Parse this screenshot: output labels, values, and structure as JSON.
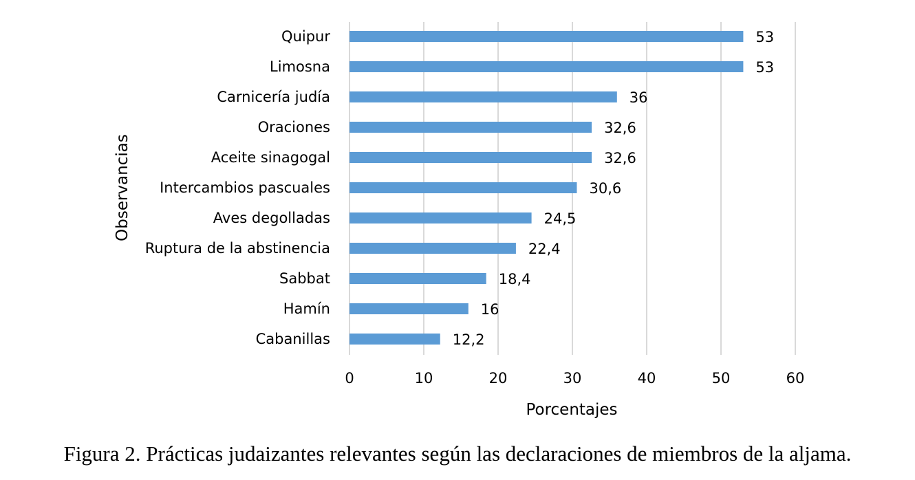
{
  "chart_data": {
    "type": "bar",
    "orientation": "horizontal",
    "categories": [
      "Quipur",
      "Limosna",
      "Carnicería judía",
      "Oraciones",
      "Aceite sinagogal",
      "Intercambios pascuales",
      "Aves degolladas",
      "Ruptura de la abstinencia",
      "Sabbat",
      "Hamín",
      "Cabanillas"
    ],
    "values": [
      53,
      53,
      36,
      32.6,
      32.6,
      30.6,
      24.5,
      22.4,
      18.4,
      16,
      12.2
    ],
    "value_labels": [
      "53",
      "53",
      "36",
      "32,6",
      "32,6",
      "30,6",
      "24,5",
      "22,4",
      "18,4",
      "16",
      "12,2"
    ],
    "xlabel": "Porcentajes",
    "ylabel": "Observancias",
    "xlim": [
      0,
      60
    ],
    "x_ticks": [
      0,
      10,
      20,
      30,
      40,
      50,
      60
    ],
    "grid": "vertical",
    "bar_color": "#5B9BD5"
  },
  "caption": "Figura 2. Prácticas judaizantes relevantes según las declaraciones de miembros de la aljama."
}
